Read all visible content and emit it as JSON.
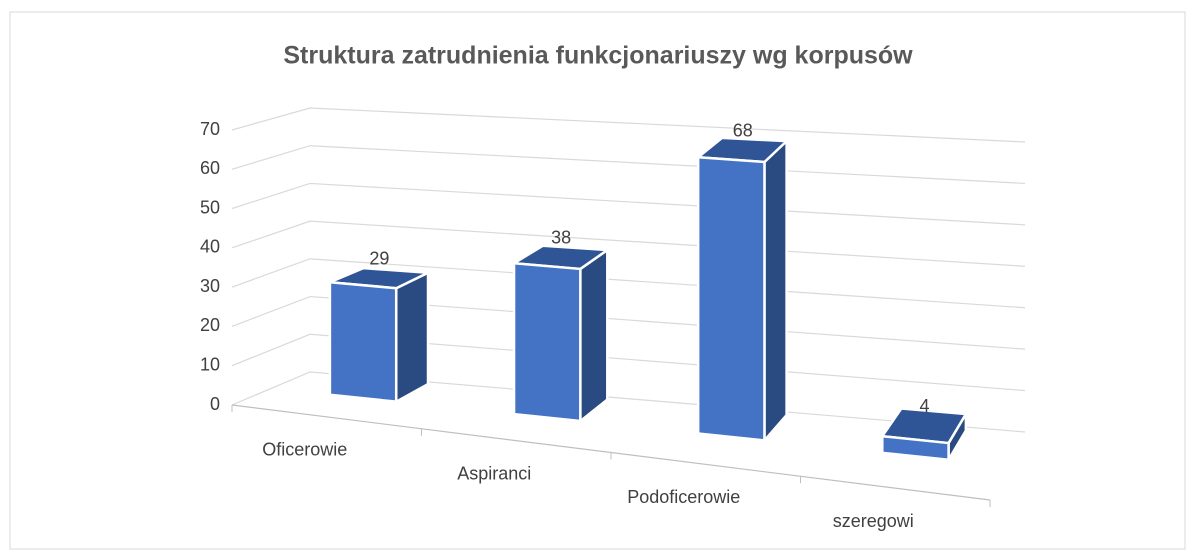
{
  "chart_data": {
    "type": "bar3d",
    "title": "Struktura zatrudnienia funkcjonariuszy wg korpusów",
    "categories": [
      "Oficerowie",
      "Aspiranci",
      "Podoficerowie",
      "szeregowi"
    ],
    "values": [
      29,
      38,
      68,
      4
    ],
    "color": "#4472c4",
    "ylim": [
      0,
      70
    ],
    "yticks": [
      0,
      10,
      20,
      30,
      40,
      50,
      60,
      70
    ],
    "grid": true
  }
}
